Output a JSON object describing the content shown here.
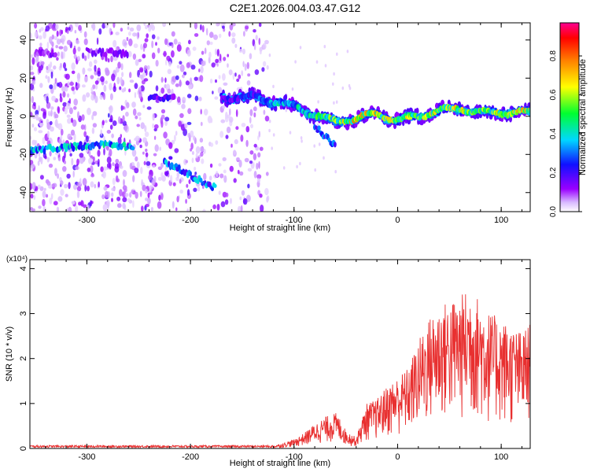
{
  "title": "C2E1.2026.004.03.47.G12",
  "chart_data": [
    {
      "type": "heatmap",
      "title": "C2E1.2026.004.03.47.G12",
      "xlabel": "Height of straight line (km)",
      "ylabel": "Frequency (Hz)",
      "xlim": [
        -355,
        128
      ],
      "ylim": [
        -50,
        49
      ],
      "xticks": [
        -300,
        -200,
        -100,
        0,
        100
      ],
      "xtick_labels": [
        "-300",
        "-200",
        "-100",
        "0",
        "100"
      ],
      "yticks": [
        -40,
        -20,
        0,
        20,
        40
      ],
      "ytick_labels": [
        "-40",
        "-20",
        "0",
        "20",
        "40"
      ],
      "colorbar": {
        "label": "Normalized spectral amplitude",
        "range": [
          0,
          0.97
        ],
        "ticks": [
          0,
          0.2,
          0.4,
          0.6,
          0.8
        ],
        "tick_labels": [
          "0.0",
          "0.2",
          "0.4",
          "0.6",
          "0.8"
        ],
        "colors": [
          "#ffffff",
          "#9a00ff",
          "#0000ff",
          "#00e0ff",
          "#00ff00",
          "#ffff00",
          "#ff8000",
          "#ff0000",
          "#ff0090"
        ]
      },
      "main_track": {
        "x": [
          -170,
          -140,
          -120,
          -100,
          -80,
          -60,
          -40,
          -20,
          0,
          20,
          40,
          60,
          80,
          100,
          128
        ],
        "y": [
          10,
          10,
          8,
          5,
          1,
          -3,
          -1,
          1,
          -2,
          0,
          3,
          4,
          2,
          2,
          2
        ],
        "amplitude": [
          0.2,
          0.25,
          0.35,
          0.4,
          0.45,
          0.55,
          0.7,
          0.65,
          0.6,
          0.55,
          0.6,
          0.6,
          0.55,
          0.6,
          0.65
        ]
      },
      "secondary_tracks": [
        {
          "x": [
            -355,
            -320,
            -290,
            -255
          ],
          "y": [
            -18,
            -16,
            -15,
            -16
          ],
          "amplitude": 0.4
        },
        {
          "x": [
            -225,
            -200,
            -175
          ],
          "y": [
            -24,
            -31,
            -38
          ],
          "amplitude": 0.35
        },
        {
          "x": [
            -80,
            -60
          ],
          "y": [
            -5,
            -16
          ],
          "amplitude": 0.3
        },
        {
          "x": [
            -350,
            -330
          ],
          "y": [
            33,
            33
          ],
          "amplitude": 0.15
        },
        {
          "x": [
            -300,
            -260
          ],
          "y": [
            34,
            33
          ],
          "amplitude": 0.15
        },
        {
          "x": [
            -240,
            -215
          ],
          "y": [
            10,
            10
          ],
          "amplitude": 0.2
        }
      ],
      "noise_region_x": [
        -355,
        -125
      ]
    },
    {
      "type": "line",
      "xlabel": "Height of straight line (km)",
      "ylabel": "SNR (10 * v/v)",
      "y_multiplier": "(x10⁴)",
      "xlim": [
        -355,
        128
      ],
      "ylim": [
        0,
        4.2
      ],
      "xticks": [
        -300,
        -200,
        -100,
        0,
        100
      ],
      "xtick_labels": [
        "-300",
        "-200",
        "-100",
        "0",
        "100"
      ],
      "yticks": [
        0,
        1,
        2,
        3,
        4
      ],
      "ytick_labels": [
        "0",
        "1",
        "2",
        "3",
        "4"
      ],
      "color": "#e83030",
      "envelope": {
        "x": [
          -355,
          -120,
          -110,
          -100,
          -90,
          -80,
          -70,
          -60,
          -55,
          -50,
          -40,
          -30,
          -20,
          -10,
          0,
          10,
          20,
          30,
          40,
          50,
          60,
          70,
          80,
          90,
          100,
          110,
          120,
          128
        ],
        "y": [
          0.06,
          0.06,
          0.12,
          0.2,
          0.35,
          0.55,
          0.7,
          0.8,
          0.65,
          0.4,
          0.25,
          1.0,
          1.1,
          1.4,
          1.6,
          1.8,
          2.4,
          2.9,
          3.2,
          3.3,
          3.4,
          3.6,
          3.3,
          3.0,
          2.9,
          2.7,
          2.6,
          2.8
        ]
      }
    }
  ]
}
